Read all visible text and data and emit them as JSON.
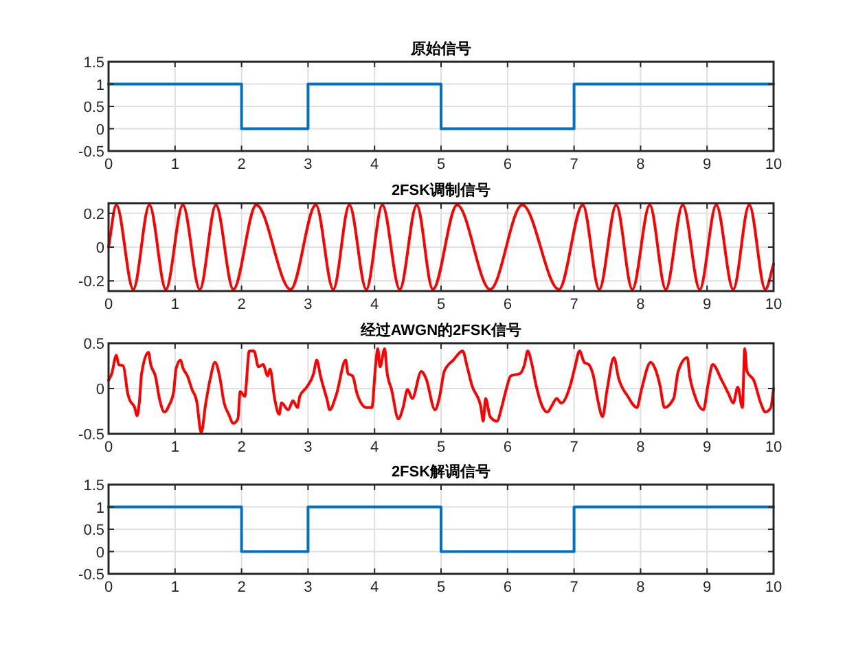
{
  "chart_data": [
    {
      "type": "line",
      "title": "原始信号",
      "xlim": [
        0,
        10
      ],
      "ylim": [
        -0.5,
        1.5
      ],
      "xticks": [
        0,
        1,
        2,
        3,
        4,
        5,
        6,
        7,
        8,
        9,
        10
      ],
      "yticks": [
        -0.5,
        0,
        0.5,
        1,
        1.5
      ],
      "grid": true,
      "series": [
        {
          "color": "#0072bd",
          "x": [
            0,
            2,
            2,
            3,
            3,
            5,
            5,
            7,
            7,
            10
          ],
          "values": [
            1,
            1,
            0,
            0,
            1,
            1,
            0,
            0,
            1,
            1
          ]
        }
      ]
    },
    {
      "type": "line",
      "title": "2FSK调制信号",
      "xlim": [
        0,
        10
      ],
      "ylim": [
        -0.26,
        0.26
      ],
      "xticks": [
        0,
        1,
        2,
        3,
        4,
        5,
        6,
        7,
        8,
        9,
        10
      ],
      "yticks": [
        -0.2,
        0,
        0.2
      ],
      "grid": true,
      "series": [
        {
          "color": "#ff0000",
          "x": [
            0,
            0.117,
            0.372,
            0.614,
            0.862,
            1.117,
            1.372,
            1.614,
            1.876,
            2.221,
            2.738,
            3.117,
            3.379,
            3.621,
            3.876,
            4.117,
            4.379,
            4.634,
            4.876,
            5.241,
            5.738,
            6.221,
            6.772,
            7.131,
            7.379,
            7.634,
            7.876,
            8.138,
            8.379,
            8.634,
            8.89,
            9.138,
            9.393,
            9.634,
            9.876,
            10
          ],
          "values": [
            0,
            0.25,
            -0.25,
            0.25,
            -0.25,
            0.25,
            -0.25,
            0.25,
            -0.25,
            0.25,
            -0.25,
            0.25,
            -0.25,
            0.25,
            -0.25,
            0.25,
            -0.25,
            0.25,
            -0.25,
            0.25,
            -0.25,
            0.25,
            -0.25,
            0.25,
            -0.25,
            0.25,
            -0.25,
            0.25,
            -0.25,
            0.25,
            -0.25,
            0.25,
            -0.25,
            0.25,
            -0.25,
            -0.1
          ]
        }
      ]
    },
    {
      "type": "line",
      "title": "经过AWGN的2FSK信号",
      "xlim": [
        0,
        10
      ],
      "ylim": [
        -0.5,
        0.5
      ],
      "xticks": [
        0,
        1,
        2,
        3,
        4,
        5,
        6,
        7,
        8,
        9,
        10
      ],
      "yticks": [
        -0.5,
        0,
        0.5
      ],
      "grid": true,
      "series": [
        {
          "color": "#ff0000",
          "x": [
            0,
            0.048,
            0.117,
            0.152,
            0.221,
            0.29,
            0.324,
            0.393,
            0.428,
            0.462,
            0.497,
            0.6,
            0.634,
            0.703,
            0.772,
            0.841,
            0.91,
            0.979,
            1.014,
            1.083,
            1.117,
            1.186,
            1.255,
            1.324,
            1.393,
            1.462,
            1.531,
            1.6,
            1.669,
            1.738,
            1.807,
            1.876,
            1.945,
            1.979,
            2.048,
            2.117,
            2.186,
            2.255,
            2.324,
            2.393,
            2.428,
            2.497,
            2.566,
            2.6,
            2.703,
            2.772,
            2.841,
            2.876,
            2.979,
            3.083,
            3.131,
            3.186,
            3.29,
            3.324,
            3.428,
            3.566,
            3.6,
            3.669,
            3.738,
            3.876,
            3.959,
            4.014,
            4.048,
            4.083,
            4.152,
            4.186,
            4.255,
            4.359,
            4.428,
            4.497,
            4.566,
            4.703,
            4.772,
            4.91,
            4.979,
            5.048,
            5.186,
            5.324,
            5.393,
            5.462,
            5.6,
            5.634,
            5.669,
            5.738,
            5.841,
            5.91,
            5.979,
            6.048,
            6.186,
            6.255,
            6.303,
            6.359,
            6.428,
            6.531,
            6.6,
            6.669,
            6.738,
            6.807,
            6.945,
            7.014,
            7.083,
            7.152,
            7.221,
            7.29,
            7.359,
            7.428,
            7.497,
            7.6,
            7.669,
            7.807,
            7.945,
            8.014,
            8.152,
            8.221,
            8.29,
            8.359,
            8.497,
            8.566,
            8.703,
            8.738,
            8.807,
            8.945,
            9.014,
            9.083,
            9.221,
            9.324,
            9.393,
            9.462,
            9.531,
            9.566,
            9.6,
            9.703,
            9.807,
            9.876,
            9.959,
            10
          ],
          "values": [
            0.09,
            0.165,
            0.365,
            0.265,
            0.25,
            -0.06,
            -0.135,
            -0.21,
            -0.3,
            -0.16,
            0.165,
            0.4,
            0.265,
            0.14,
            -0.135,
            -0.26,
            -0.185,
            -0.035,
            0.215,
            0.315,
            0.23,
            0.14,
            -0.01,
            -0.135,
            -0.485,
            -0.16,
            0.115,
            0.29,
            0.14,
            -0.16,
            -0.285,
            -0.385,
            -0.335,
            -0.035,
            -0.085,
            0.415,
            0.415,
            0.24,
            0.265,
            0.14,
            0.215,
            -0.11,
            -0.285,
            -0.16,
            -0.235,
            -0.135,
            -0.21,
            -0.085,
            0.015,
            0.165,
            0.315,
            0.14,
            -0.135,
            -0.235,
            -0.06,
            0.315,
            0.165,
            0.14,
            -0.06,
            -0.21,
            -0.21,
            0.24,
            0.44,
            0.24,
            0.44,
            0.19,
            -0.01,
            -0.335,
            -0.21,
            -0.01,
            -0.11,
            0.19,
            0.115,
            -0.235,
            -0.085,
            0.19,
            0.315,
            0.415,
            0.24,
            0.04,
            -0.21,
            -0.36,
            -0.11,
            -0.31,
            -0.36,
            -0.21,
            -0.01,
            0.14,
            0.165,
            0.265,
            0.415,
            0.29,
            0.04,
            -0.21,
            -0.26,
            -0.185,
            -0.11,
            -0.16,
            0.04,
            0.24,
            0.415,
            0.29,
            0.265,
            0.14,
            -0.135,
            -0.31,
            -0.01,
            0.34,
            0.115,
            -0.085,
            -0.21,
            -0.01,
            0.29,
            0.215,
            0.04,
            -0.21,
            -0.11,
            0.19,
            0.34,
            0.14,
            -0.06,
            -0.235,
            0.04,
            0.265,
            0.09,
            -0.06,
            -0.16,
            0.015,
            -0.21,
            0.44,
            0.19,
            0.09,
            -0.16,
            -0.26,
            -0.21,
            0
          ]
        }
      ]
    },
    {
      "type": "line",
      "title": "2FSK解调信号",
      "xlim": [
        0,
        10
      ],
      "ylim": [
        -0.5,
        1.5
      ],
      "xticks": [
        0,
        1,
        2,
        3,
        4,
        5,
        6,
        7,
        8,
        9,
        10
      ],
      "yticks": [
        -0.5,
        0,
        0.5,
        1,
        1.5
      ],
      "grid": true,
      "series": [
        {
          "color": "#0072bd",
          "x": [
            0,
            2,
            2,
            3,
            3,
            5,
            5,
            7,
            7,
            10
          ],
          "values": [
            1,
            1,
            0,
            0,
            1,
            1,
            0,
            0,
            1,
            1
          ]
        }
      ]
    }
  ]
}
